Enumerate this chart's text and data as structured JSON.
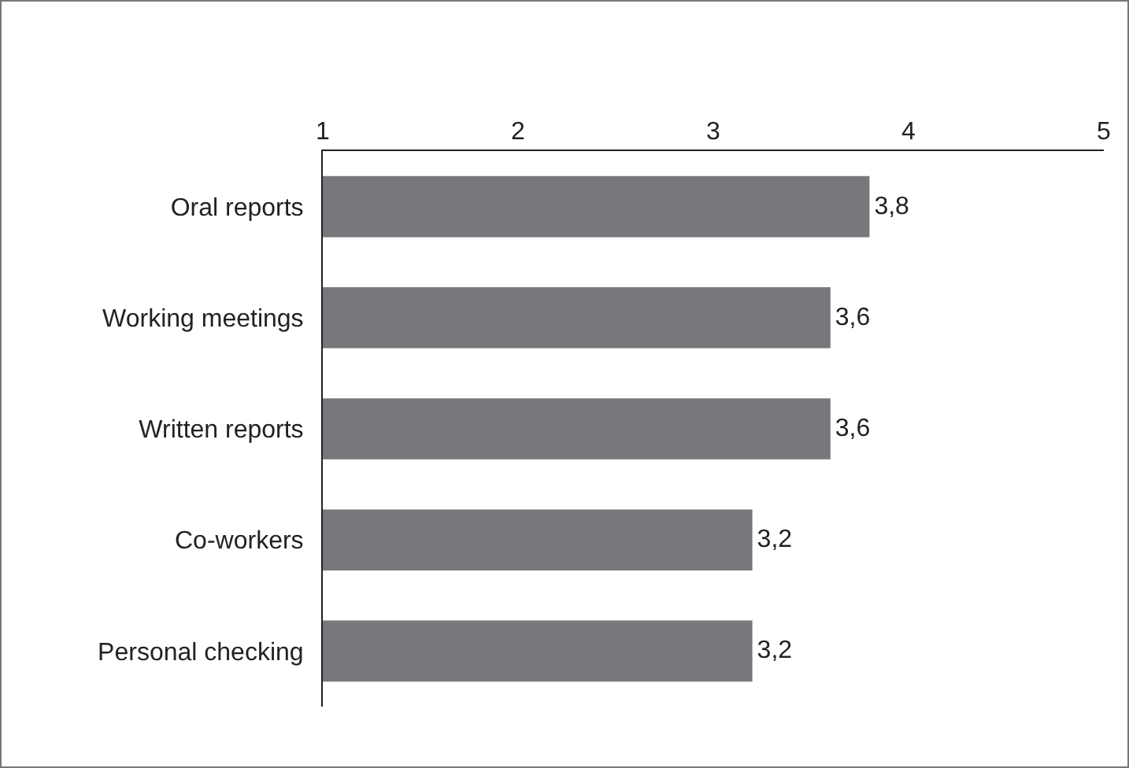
{
  "chart_data": {
    "type": "bar",
    "orientation": "horizontal",
    "categories": [
      "Oral reports",
      "Working meetings",
      "Written reports",
      "Co-workers",
      "Personal checking"
    ],
    "values": [
      3.8,
      3.6,
      3.6,
      3.2,
      3.2
    ],
    "value_labels": [
      "3,8",
      "3,6",
      "3,6",
      "3,2",
      "3,2"
    ],
    "color": "#77787b",
    "xlim": [
      1,
      5
    ],
    "xticks": [
      1,
      2,
      3,
      4,
      5
    ],
    "grid": false,
    "legend": false
  }
}
